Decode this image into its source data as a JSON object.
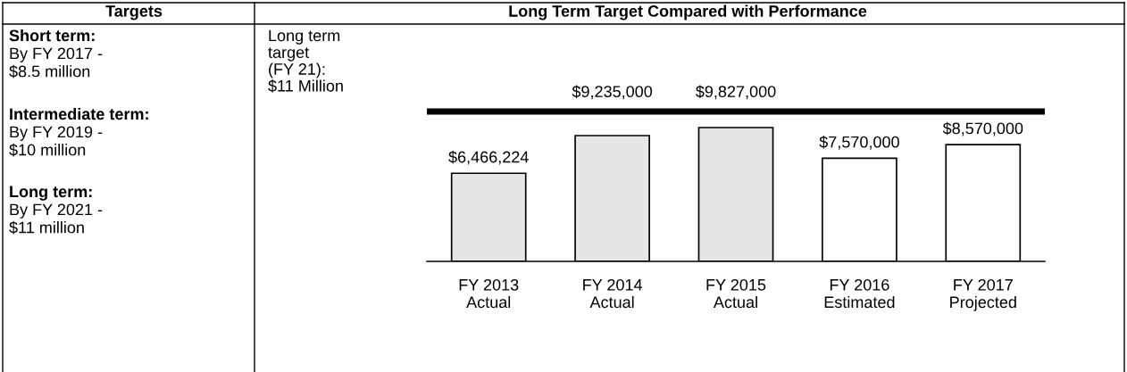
{
  "chart_data": {
    "type": "bar",
    "title": "Long Term Target Compared with Performance",
    "categories": [
      "FY 2013\nActual",
      "FY 2014\nActual",
      "FY 2015\nActual",
      "FY 2016\nEstimated",
      "FY 2017\nProjected"
    ],
    "values": [
      6466224,
      9235000,
      9827000,
      7570000,
      8570000
    ],
    "colors": [
      "#e6e6e6",
      "#e6e6e6",
      "#e6e6e6",
      "#ffffff",
      "#ffffff"
    ],
    "value_labels": [
      "$6,466,224",
      "$9,235,000",
      "$9,827,000",
      "$7,570,000",
      "$8,570,000"
    ],
    "ref_lines": [
      {
        "axis": "y",
        "value": 11000000,
        "color": "#000000",
        "line_style": "solid"
      }
    ],
    "annotations": [
      "Targets",
      "Short term:",
      "By FY 2017 -\n$8.5 million",
      "Intermediate term:",
      "By FY 2019 -\n$10 million",
      "Long term:",
      "By FY 2021 -\n$11 million",
      "Long term\ntarget\n(FY 21):\n$11 Million"
    ],
    "grid": false
  }
}
